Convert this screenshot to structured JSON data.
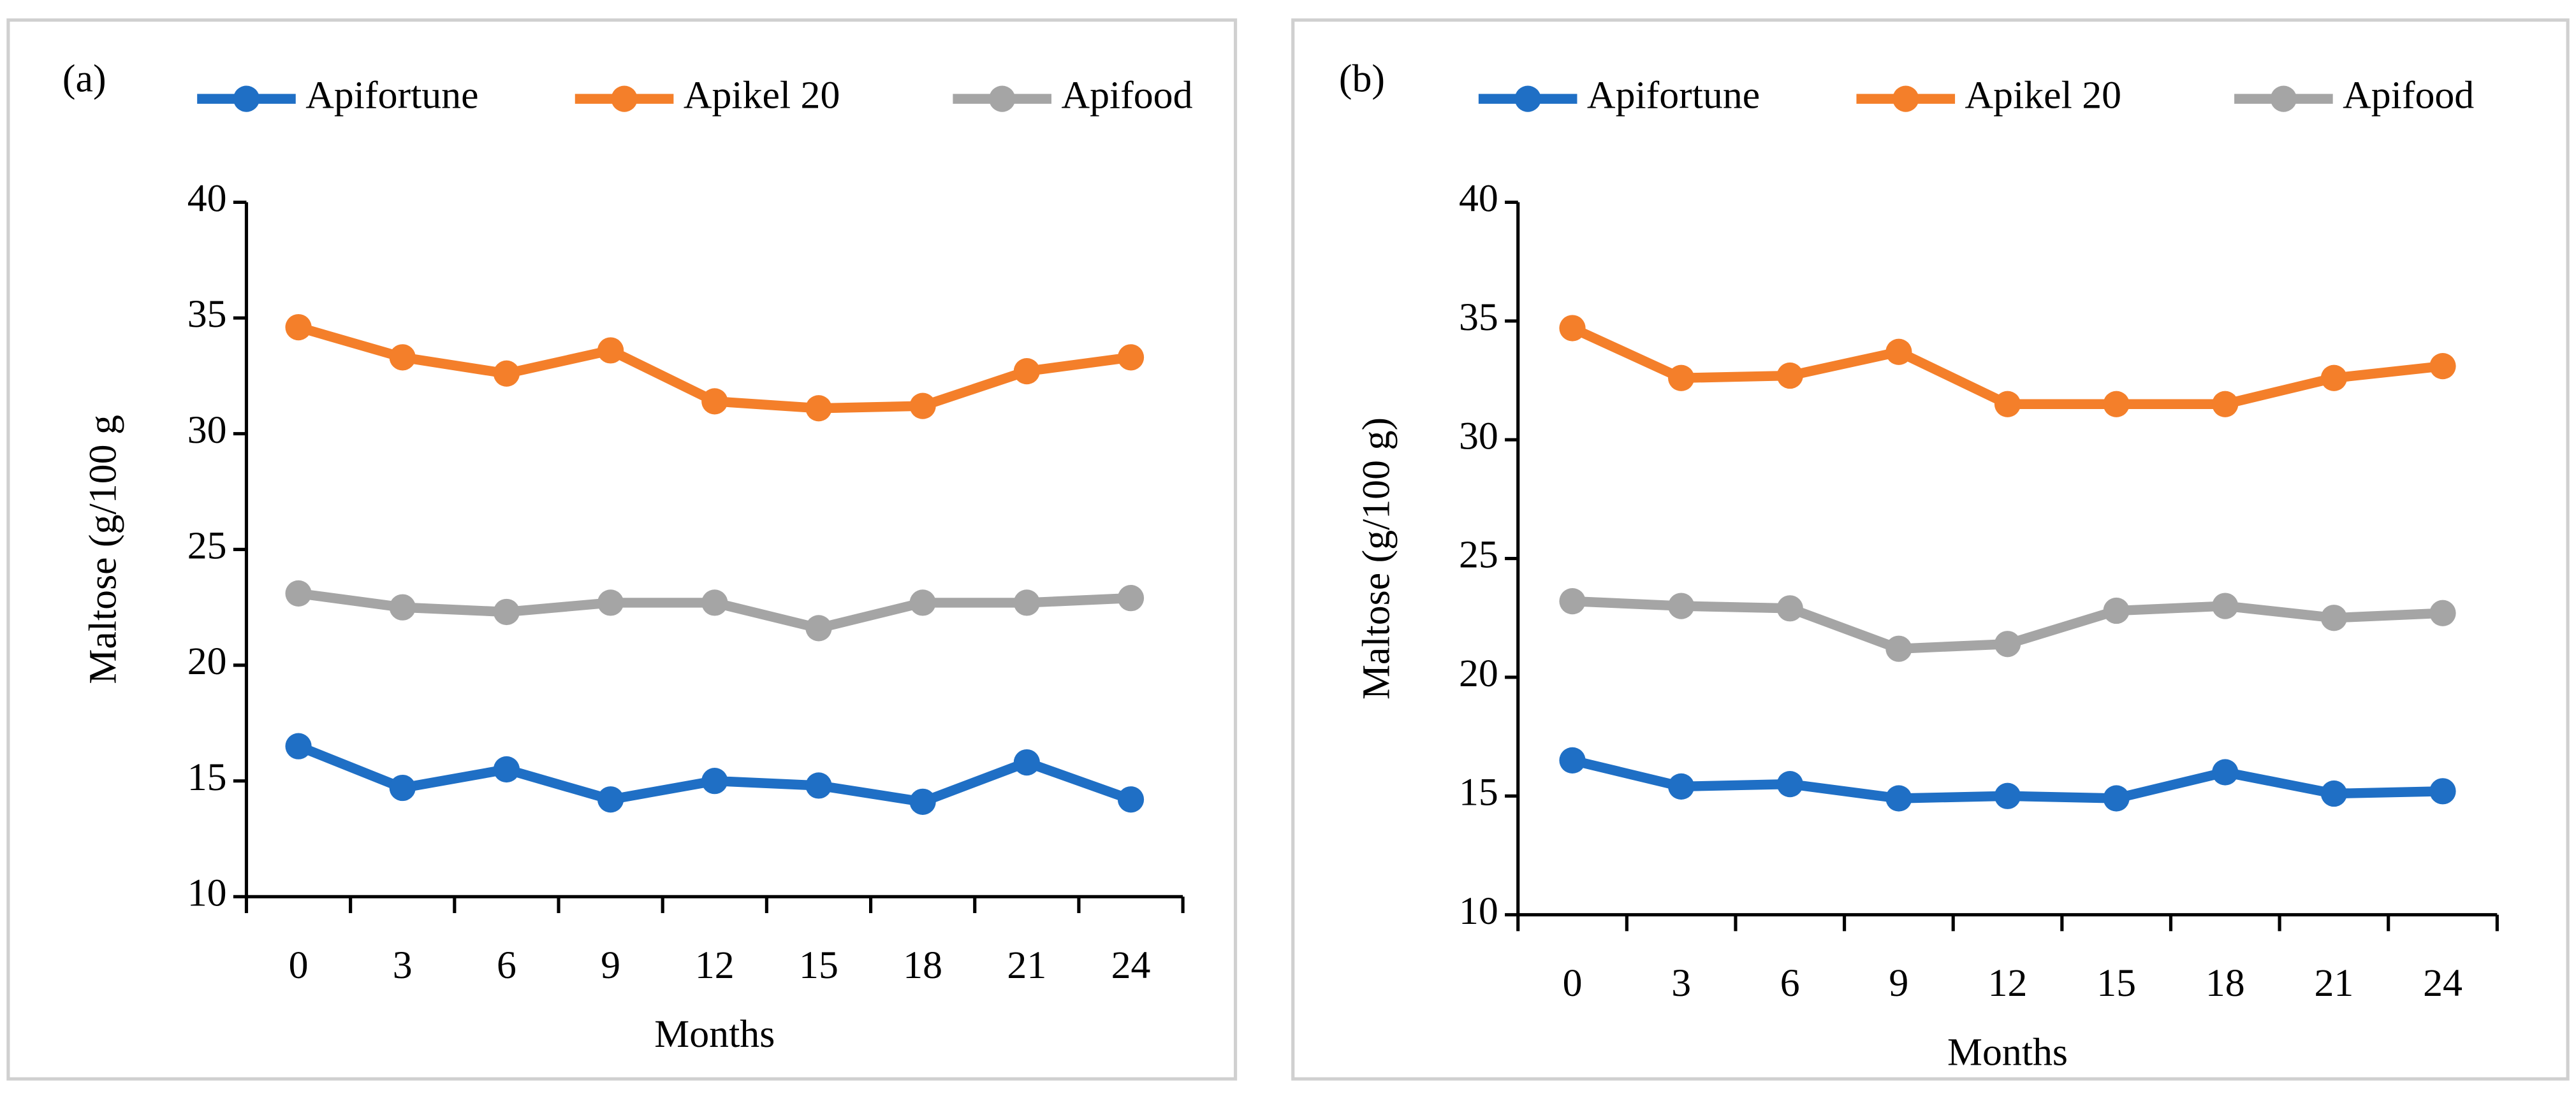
{
  "chart_data": [
    {
      "type": "line",
      "title": "(a)",
      "x_label": "Months",
      "y_label": "Maltose (g/100 g",
      "categories": [
        "0",
        "3",
        "6",
        "9",
        "12",
        "15",
        "18",
        "21",
        "24"
      ],
      "ylim": [
        10,
        40
      ],
      "yticks": [
        10,
        15,
        20,
        25,
        30,
        35,
        40
      ],
      "series": [
        {
          "name": "Apifortune",
          "color": "#1f6fc5",
          "values": [
            16.5,
            14.7,
            15.5,
            14.2,
            15.0,
            14.8,
            14.1,
            15.8,
            14.2
          ]
        },
        {
          "name": "Apikel 20",
          "color": "#f47f2a",
          "values": [
            34.6,
            33.3,
            32.6,
            33.6,
            31.4,
            31.1,
            31.2,
            32.7,
            33.3
          ]
        },
        {
          "name": "Apifood",
          "color": "#a5a5a5",
          "values": [
            23.1,
            22.5,
            22.3,
            22.7,
            22.7,
            21.6,
            22.7,
            22.7,
            22.9
          ]
        }
      ]
    },
    {
      "type": "line",
      "title": "(b)",
      "x_label": "Months",
      "y_label": "Maltose (g/100 g)",
      "categories": [
        "0",
        "3",
        "6",
        "9",
        "12",
        "15",
        "18",
        "21",
        "24"
      ],
      "ylim": [
        10,
        40
      ],
      "yticks": [
        10,
        15,
        20,
        25,
        30,
        35,
        40
      ],
      "series": [
        {
          "name": "Apifortune",
          "color": "#1f6fc5",
          "values": [
            16.5,
            15.4,
            15.5,
            14.9,
            15.0,
            14.9,
            16.0,
            15.1,
            15.2
          ]
        },
        {
          "name": "Apikel 20",
          "color": "#f47f2a",
          "values": [
            34.7,
            32.6,
            32.7,
            33.7,
            31.5,
            31.5,
            31.5,
            32.6,
            33.1
          ]
        },
        {
          "name": "Apifood",
          "color": "#a5a5a5",
          "values": [
            23.2,
            23.0,
            22.9,
            21.2,
            21.4,
            22.8,
            23.0,
            22.5,
            22.7
          ]
        }
      ]
    }
  ]
}
